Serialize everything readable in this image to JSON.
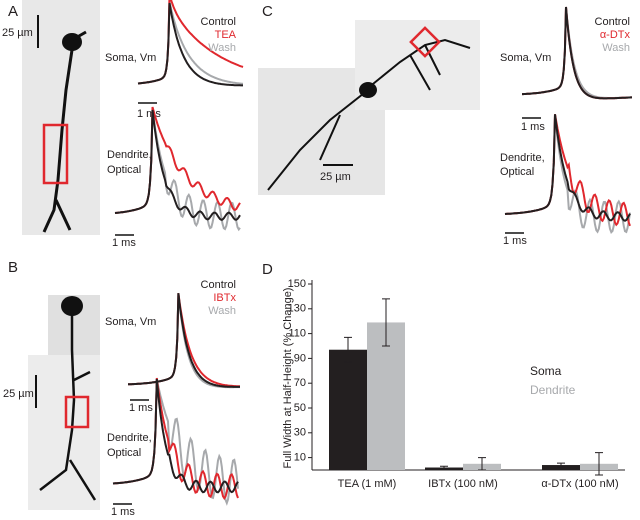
{
  "panels": [
    {
      "label": "A",
      "scale": "25 µm",
      "soma": "Soma, Vm",
      "dendrite": [
        "Dendrite,",
        "Optical"
      ],
      "time_soma": "1 ms",
      "time_dendrite": "1 ms",
      "legend": [
        {
          "name": "Control",
          "color": "#231f20"
        },
        {
          "name": "TEA",
          "color": "#e0282e"
        },
        {
          "name": "Wash",
          "color": "#a7a9ac"
        }
      ]
    },
    {
      "label": "B",
      "scale": "25 µm",
      "soma": "Soma, Vm",
      "dendrite": [
        "Dendrite,",
        "Optical"
      ],
      "time_soma": "1 ms",
      "time_dendrite": "1 ms",
      "legend": [
        {
          "name": "Control",
          "color": "#231f20"
        },
        {
          "name": "IBTx",
          "color": "#e0282e"
        },
        {
          "name": "Wash",
          "color": "#a7a9ac"
        }
      ]
    },
    {
      "label": "C",
      "scale": "25 µm",
      "soma": "Soma, Vm",
      "dendrite": [
        "Dendrite,",
        "Optical"
      ],
      "time_soma": "1 ms",
      "time_dendrite": "1 ms",
      "legend": [
        {
          "name": "Control",
          "color": "#231f20"
        },
        {
          "name": "α-DTx",
          "color": "#e0282e"
        },
        {
          "name": "Wash",
          "color": "#a7a9ac"
        }
      ]
    }
  ],
  "chart_data": {
    "type": "bar",
    "label": "D",
    "y_label": "Full Width at Half-Height (% Change)",
    "categories": [
      "TEA (1 mM)",
      "IBTx (100 nM)",
      "α-DTx (100 nM)"
    ],
    "series": [
      {
        "name": "Soma",
        "color": "#231f20",
        "values": [
          97,
          2,
          4
        ],
        "errors": [
          10,
          1,
          1.5
        ]
      },
      {
        "name": "Dendrite",
        "color": "#bcbec0",
        "values": [
          119,
          5,
          5
        ],
        "errors": [
          19,
          5,
          9
        ]
      }
    ],
    "ylim": [
      0,
      150
    ],
    "yticks": [
      10,
      30,
      50,
      70,
      90,
      110,
      130,
      150
    ]
  }
}
